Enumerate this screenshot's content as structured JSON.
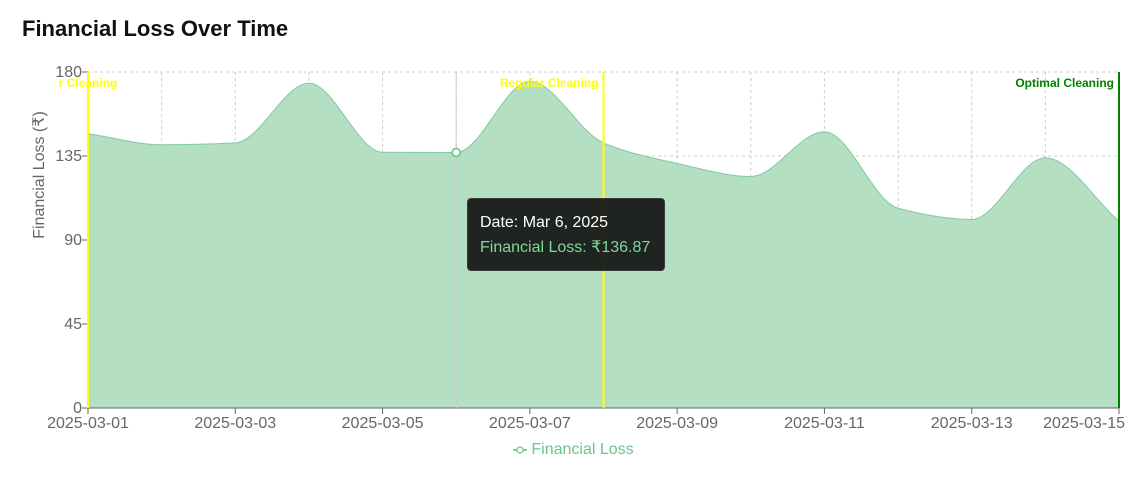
{
  "title": "Financial Loss Over Time",
  "chart_data": {
    "type": "area",
    "x": [
      "2025-03-01",
      "2025-03-02",
      "2025-03-03",
      "2025-03-04",
      "2025-03-05",
      "2025-03-06",
      "2025-03-07",
      "2025-03-08",
      "2025-03-09",
      "2025-03-10",
      "2025-03-11",
      "2025-03-12",
      "2025-03-13",
      "2025-03-14",
      "2025-03-15"
    ],
    "series": [
      {
        "name": "Financial Loss",
        "values": [
          147,
          141,
          142,
          174,
          137,
          136.87,
          175,
          142,
          131,
          124,
          148,
          107,
          101,
          134,
          100
        ]
      }
    ],
    "xticks": [
      "2025-03-01",
      "2025-03-03",
      "2025-03-05",
      "2025-03-07",
      "2025-03-09",
      "2025-03-11",
      "2025-03-13",
      "2025-03-15"
    ],
    "yticks": [
      0,
      45,
      90,
      135,
      180
    ],
    "ylim": [
      0,
      180
    ],
    "ylabel": "Financial Loss (₹)",
    "grid": true,
    "legend_position": "bottom-center",
    "colors": {
      "fill": "#b4dfc3",
      "stroke": "#82ca9d"
    },
    "reference_lines": [
      {
        "x": "2025-03-01",
        "label": "r Cleaning",
        "color": "#ffff00"
      },
      {
        "x": "2025-03-08",
        "label": "Regular Cleaning",
        "color": "#ffff00"
      },
      {
        "x": "2025-03-15",
        "label": "Optimal Cleaning",
        "color": "#008000"
      }
    ],
    "tooltip": {
      "x": "2025-03-06",
      "date_text": "Date: Mar 6, 2025",
      "value_text": "Financial Loss: ₹136.87"
    }
  }
}
